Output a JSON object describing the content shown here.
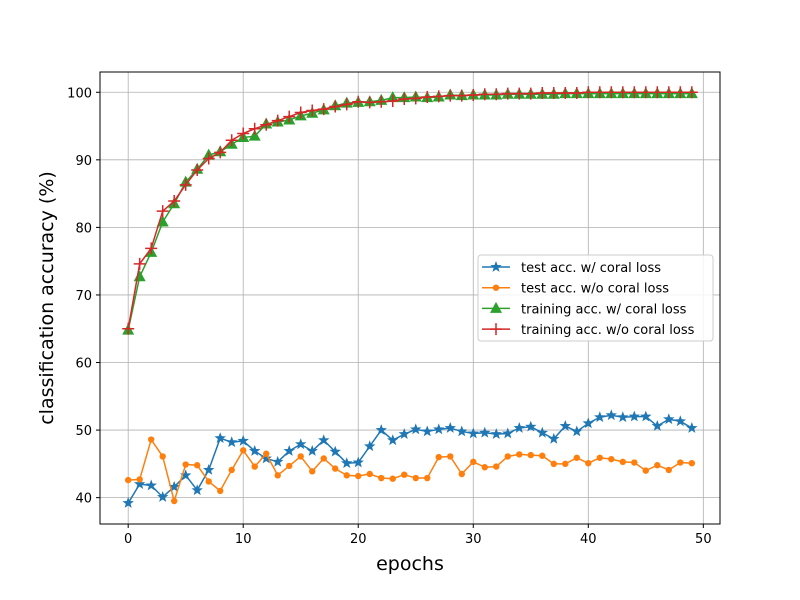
{
  "chart_data": {
    "type": "line",
    "title": "",
    "xlabel": "epochs",
    "ylabel": "classification accuracy (%)",
    "xlim": [
      -2.45,
      51.45
    ],
    "ylim": [
      36.1,
      103.0
    ],
    "xticks": [
      0,
      10,
      20,
      30,
      40,
      50
    ],
    "yticks": [
      40,
      50,
      60,
      70,
      80,
      90,
      100
    ],
    "grid": true,
    "legend_position": "center-right",
    "x": [
      0,
      1,
      2,
      3,
      4,
      5,
      6,
      7,
      8,
      9,
      10,
      11,
      12,
      13,
      14,
      15,
      16,
      17,
      18,
      19,
      20,
      21,
      22,
      23,
      24,
      25,
      26,
      27,
      28,
      29,
      30,
      31,
      32,
      33,
      34,
      35,
      36,
      37,
      38,
      39,
      40,
      41,
      42,
      43,
      44,
      45,
      46,
      47,
      48,
      49
    ],
    "series": [
      {
        "name": "test acc. w/ coral loss",
        "color": "#1f77b4",
        "marker": "star",
        "values": [
          39.2,
          42.0,
          41.8,
          40.1,
          41.6,
          43.3,
          41.1,
          44.1,
          48.8,
          48.2,
          48.4,
          46.9,
          45.8,
          45.3,
          46.9,
          47.9,
          46.9,
          48.5,
          46.8,
          45.1,
          45.2,
          47.6,
          50.0,
          48.5,
          49.4,
          50.1,
          49.8,
          50.1,
          50.3,
          49.8,
          49.5,
          49.6,
          49.4,
          49.5,
          50.3,
          50.5,
          49.6,
          48.7,
          50.6,
          49.8,
          51.0,
          51.9,
          52.2,
          51.9,
          52.0,
          52.0,
          50.6,
          51.6,
          51.3,
          50.3
        ]
      },
      {
        "name": "test acc. w/o coral loss",
        "color": "#ff7f0e",
        "marker": "circle",
        "values": [
          42.6,
          42.7,
          48.6,
          46.1,
          39.5,
          44.9,
          44.8,
          42.4,
          41.0,
          44.1,
          47.0,
          44.6,
          46.5,
          43.3,
          44.7,
          46.1,
          43.9,
          45.8,
          44.3,
          43.3,
          43.2,
          43.5,
          42.9,
          42.8,
          43.4,
          42.9,
          42.9,
          46.0,
          46.1,
          43.5,
          45.3,
          44.5,
          44.6,
          46.1,
          46.4,
          46.3,
          46.2,
          45.0,
          45.0,
          45.9,
          45.1,
          45.9,
          45.7,
          45.3,
          45.2,
          44.0,
          44.8,
          44.1,
          45.2,
          45.1
        ]
      },
      {
        "name": "training acc. w/ coral loss",
        "color": "#2ca02c",
        "marker": "triangle",
        "values": [
          64.8,
          72.7,
          76.3,
          80.8,
          83.5,
          86.7,
          88.6,
          90.7,
          91.2,
          92.3,
          93.3,
          93.5,
          95.3,
          95.6,
          95.9,
          96.5,
          96.9,
          97.4,
          98.0,
          98.4,
          98.5,
          98.6,
          98.8,
          99.2,
          99.2,
          99.3,
          99.2,
          99.3,
          99.6,
          99.5,
          99.6,
          99.6,
          99.6,
          99.7,
          99.7,
          99.7,
          99.7,
          99.7,
          99.8,
          99.8,
          99.8,
          99.8,
          99.8,
          99.8,
          99.8,
          99.8,
          99.8,
          99.8,
          99.8,
          99.8
        ]
      },
      {
        "name": "training acc. w/o coral loss",
        "color": "#d62728",
        "marker": "plus",
        "values": [
          65.0,
          74.6,
          76.9,
          82.4,
          83.9,
          86.3,
          88.5,
          90.2,
          91.1,
          92.9,
          93.9,
          94.6,
          95.2,
          95.8,
          96.4,
          97.0,
          97.3,
          97.5,
          97.9,
          98.2,
          98.6,
          98.5,
          98.6,
          98.7,
          99.0,
          99.1,
          99.3,
          99.4,
          99.5,
          99.5,
          99.6,
          99.7,
          99.7,
          99.8,
          99.8,
          99.8,
          99.9,
          99.9,
          99.9,
          99.9,
          100.0,
          100.0,
          100.0,
          100.0,
          100.0,
          100.0,
          100.0,
          100.0,
          100.0,
          100.0
        ]
      }
    ]
  }
}
